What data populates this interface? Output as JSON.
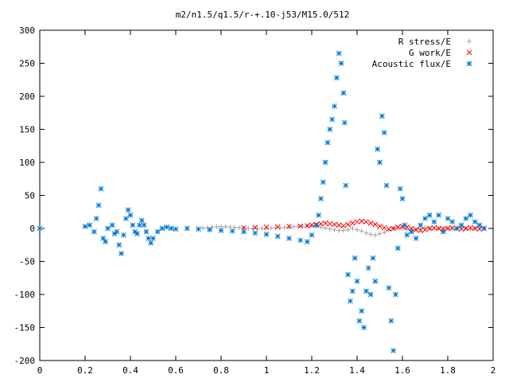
{
  "chart_data": {
    "type": "scatter",
    "title": "m2/n1.5/q1.5/r-+.10-j53/M15.0/512",
    "xlabel": "",
    "ylabel": "",
    "xlim": [
      0,
      2
    ],
    "ylim": [
      -200,
      300
    ],
    "x_ticks": [
      "0",
      "0.2",
      "0.4",
      "0.6",
      "0.8",
      "1",
      "1.2",
      "1.4",
      "1.6",
      "1.8",
      "2"
    ],
    "y_ticks": [
      "300",
      "250",
      "200",
      "150",
      "100",
      "50",
      "0",
      "-50",
      "-100",
      "-150",
      "-200"
    ],
    "grid": false,
    "legend_position": "top-right",
    "series": [
      {
        "name": "R stress/E",
        "marker": "+",
        "color": "#a0a0a0",
        "points": [
          [
            0.72,
            0.5
          ],
          [
            0.74,
            1.0
          ],
          [
            0.76,
            2.0
          ],
          [
            0.78,
            2.5
          ],
          [
            0.8,
            3.0
          ],
          [
            0.82,
            2.5
          ],
          [
            0.84,
            2.0
          ],
          [
            0.86,
            1.5
          ],
          [
            0.88,
            1.0
          ],
          [
            0.9,
            0.5
          ],
          [
            0.92,
            0.0
          ],
          [
            0.94,
            -0.5
          ],
          [
            0.96,
            -0.5
          ],
          [
            0.98,
            0.0
          ],
          [
            1.0,
            0.0
          ],
          [
            1.02,
            0.5
          ],
          [
            1.04,
            1.0
          ],
          [
            1.06,
            1.0
          ],
          [
            1.08,
            1.5
          ],
          [
            1.1,
            2.0
          ],
          [
            1.12,
            2.5
          ],
          [
            1.14,
            3.0
          ],
          [
            1.16,
            3.5
          ],
          [
            1.18,
            4.0
          ],
          [
            1.2,
            4.0
          ],
          [
            1.22,
            3.0
          ],
          [
            1.24,
            2.0
          ],
          [
            1.26,
            0.5
          ],
          [
            1.28,
            -1.0
          ],
          [
            1.3,
            -2.0
          ],
          [
            1.32,
            -3.0
          ],
          [
            1.34,
            -3.0
          ],
          [
            1.36,
            -2.0
          ],
          [
            1.38,
            0.0
          ],
          [
            1.4,
            -2.0
          ],
          [
            1.42,
            -4.0
          ],
          [
            1.44,
            -7.0
          ],
          [
            1.46,
            -9.0
          ],
          [
            1.48,
            -10.0
          ],
          [
            1.5,
            -8.0
          ],
          [
            1.52,
            -6.0
          ],
          [
            1.54,
            -3.0
          ],
          [
            1.56,
            0.0
          ],
          [
            1.58,
            1.0
          ],
          [
            1.6,
            0.0
          ],
          [
            1.62,
            -2.0
          ],
          [
            1.64,
            -3.0
          ],
          [
            1.66,
            -2.0
          ],
          [
            1.68,
            0.0
          ],
          [
            1.7,
            1.0
          ],
          [
            1.72,
            0.0
          ],
          [
            1.74,
            -1.0
          ],
          [
            1.76,
            0.0
          ],
          [
            1.78,
            1.0
          ],
          [
            1.8,
            0.0
          ],
          [
            1.82,
            -1.0
          ],
          [
            1.84,
            0.0
          ],
          [
            1.86,
            1.0
          ],
          [
            1.88,
            0.0
          ],
          [
            1.9,
            -1.0
          ],
          [
            1.92,
            0.0
          ],
          [
            1.94,
            1.0
          ],
          [
            1.96,
            0.0
          ]
        ]
      },
      {
        "name": "G work/E",
        "marker": "x",
        "color": "#ff0000",
        "points": [
          [
            0.9,
            1.0
          ],
          [
            0.95,
            1.5
          ],
          [
            1.0,
            2.0
          ],
          [
            1.05,
            2.5
          ],
          [
            1.1,
            3.0
          ],
          [
            1.15,
            3.5
          ],
          [
            1.18,
            4.0
          ],
          [
            1.2,
            5.0
          ],
          [
            1.22,
            6.0
          ],
          [
            1.24,
            7.0
          ],
          [
            1.26,
            8.0
          ],
          [
            1.28,
            7.0
          ],
          [
            1.3,
            6.0
          ],
          [
            1.32,
            5.0
          ],
          [
            1.34,
            4.0
          ],
          [
            1.36,
            6.0
          ],
          [
            1.38,
            8.0
          ],
          [
            1.4,
            10.0
          ],
          [
            1.42,
            11.0
          ],
          [
            1.44,
            10.0
          ],
          [
            1.46,
            8.0
          ],
          [
            1.48,
            6.0
          ],
          [
            1.5,
            3.0
          ],
          [
            1.52,
            1.0
          ],
          [
            1.54,
            -1.0
          ],
          [
            1.56,
            0.0
          ],
          [
            1.58,
            2.0
          ],
          [
            1.6,
            3.0
          ],
          [
            1.62,
            2.0
          ],
          [
            1.64,
            0.0
          ],
          [
            1.66,
            -2.0
          ],
          [
            1.68,
            -3.0
          ],
          [
            1.7,
            -2.0
          ],
          [
            1.72,
            0.0
          ],
          [
            1.74,
            1.0
          ],
          [
            1.76,
            0.0
          ],
          [
            1.78,
            -1.0
          ],
          [
            1.8,
            0.0
          ],
          [
            1.82,
            1.0
          ],
          [
            1.84,
            0.0
          ],
          [
            1.86,
            -1.0
          ],
          [
            1.88,
            0.0
          ],
          [
            1.9,
            1.0
          ],
          [
            1.92,
            0.0
          ],
          [
            1.94,
            -1.0
          ],
          [
            1.96,
            0.0
          ]
        ]
      },
      {
        "name": "Acoustic flux/E",
        "marker": "*",
        "color": "#0078d0",
        "points": [
          [
            0.0,
            0.0
          ],
          [
            0.2,
            3.0
          ],
          [
            0.22,
            5.0
          ],
          [
            0.24,
            -5.0
          ],
          [
            0.25,
            15.0
          ],
          [
            0.26,
            35.0
          ],
          [
            0.27,
            60.0
          ],
          [
            0.28,
            -15.0
          ],
          [
            0.29,
            -20.0
          ],
          [
            0.3,
            0.0
          ],
          [
            0.32,
            5.0
          ],
          [
            0.33,
            -8.0
          ],
          [
            0.34,
            -5.0
          ],
          [
            0.35,
            -25.0
          ],
          [
            0.36,
            -38.0
          ],
          [
            0.37,
            -10.0
          ],
          [
            0.38,
            15.0
          ],
          [
            0.39,
            28.0
          ],
          [
            0.4,
            20.0
          ],
          [
            0.41,
            5.0
          ],
          [
            0.42,
            -5.0
          ],
          [
            0.43,
            -8.0
          ],
          [
            0.44,
            5.0
          ],
          [
            0.45,
            12.0
          ],
          [
            0.46,
            5.0
          ],
          [
            0.47,
            -5.0
          ],
          [
            0.48,
            -15.0
          ],
          [
            0.49,
            -22.0
          ],
          [
            0.5,
            -15.0
          ],
          [
            0.52,
            -5.0
          ],
          [
            0.54,
            0.0
          ],
          [
            0.56,
            2.0
          ],
          [
            0.58,
            0.0
          ],
          [
            0.6,
            -1.0
          ],
          [
            0.65,
            0.0
          ],
          [
            0.7,
            -1.0
          ],
          [
            0.75,
            -2.0
          ],
          [
            0.8,
            -3.0
          ],
          [
            0.85,
            -4.0
          ],
          [
            0.9,
            -5.0
          ],
          [
            0.95,
            -7.0
          ],
          [
            1.0,
            -9.0
          ],
          [
            1.05,
            -12.0
          ],
          [
            1.1,
            -15.0
          ],
          [
            1.15,
            -18.0
          ],
          [
            1.18,
            -20.0
          ],
          [
            1.2,
            -10.0
          ],
          [
            1.22,
            5.0
          ],
          [
            1.23,
            20.0
          ],
          [
            1.24,
            45.0
          ],
          [
            1.25,
            70.0
          ],
          [
            1.26,
            100.0
          ],
          [
            1.27,
            130.0
          ],
          [
            1.28,
            150.0
          ],
          [
            1.29,
            165.0
          ],
          [
            1.3,
            185.0
          ],
          [
            1.31,
            228.0
          ],
          [
            1.32,
            265.0
          ],
          [
            1.33,
            250.0
          ],
          [
            1.34,
            205.0
          ],
          [
            1.345,
            160.0
          ],
          [
            1.35,
            65.0
          ],
          [
            1.36,
            -70.0
          ],
          [
            1.37,
            -110.0
          ],
          [
            1.38,
            -95.0
          ],
          [
            1.39,
            -45.0
          ],
          [
            1.4,
            -80.0
          ],
          [
            1.41,
            -140.0
          ],
          [
            1.42,
            -125.0
          ],
          [
            1.43,
            -150.0
          ],
          [
            1.44,
            -95.0
          ],
          [
            1.45,
            -60.0
          ],
          [
            1.46,
            -100.0
          ],
          [
            1.47,
            -45.0
          ],
          [
            1.48,
            -80.0
          ],
          [
            1.49,
            120.0
          ],
          [
            1.5,
            100.0
          ],
          [
            1.51,
            170.0
          ],
          [
            1.52,
            145.0
          ],
          [
            1.53,
            65.0
          ],
          [
            1.54,
            -90.0
          ],
          [
            1.55,
            -140.0
          ],
          [
            1.56,
            -185.0
          ],
          [
            1.57,
            -100.0
          ],
          [
            1.58,
            -30.0
          ],
          [
            1.59,
            60.0
          ],
          [
            1.6,
            45.0
          ],
          [
            1.61,
            5.0
          ],
          [
            1.62,
            -10.0
          ],
          [
            1.64,
            -5.0
          ],
          [
            1.66,
            -15.0
          ],
          [
            1.68,
            5.0
          ],
          [
            1.7,
            15.0
          ],
          [
            1.72,
            20.0
          ],
          [
            1.74,
            10.0
          ],
          [
            1.76,
            20.0
          ],
          [
            1.78,
            -5.0
          ],
          [
            1.8,
            15.0
          ],
          [
            1.82,
            10.0
          ],
          [
            1.84,
            0.0
          ],
          [
            1.86,
            5.0
          ],
          [
            1.88,
            15.0
          ],
          [
            1.9,
            20.0
          ],
          [
            1.92,
            10.0
          ],
          [
            1.94,
            5.0
          ],
          [
            1.96,
            0.0
          ]
        ]
      }
    ]
  }
}
